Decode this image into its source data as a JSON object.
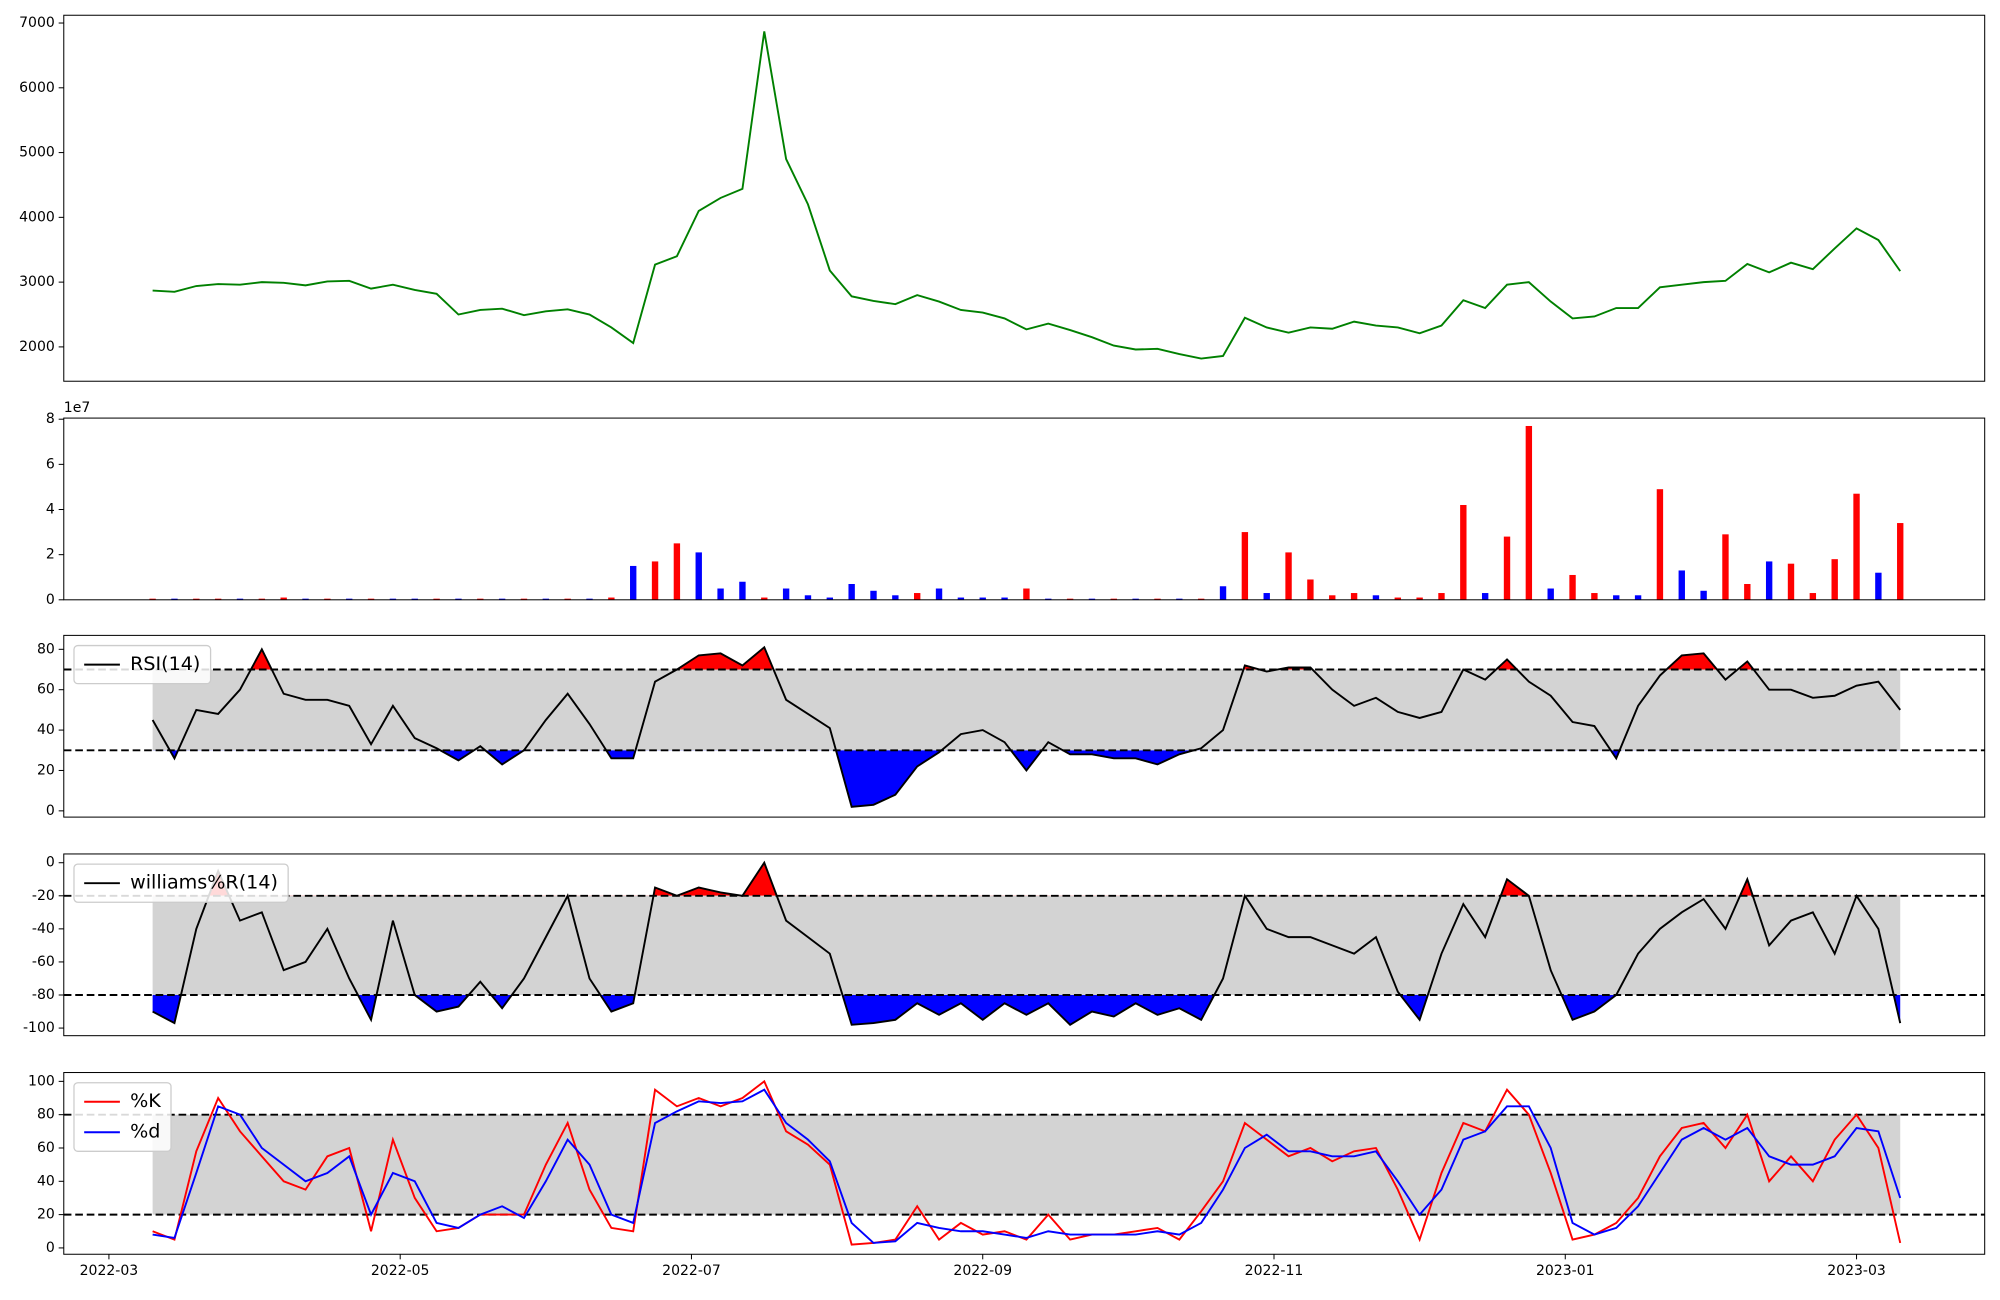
{
  "chart_data": [
    {
      "type": "line",
      "x": [
        0.3,
        0.45,
        0.6,
        0.75,
        0.9,
        1.05,
        1.2,
        1.35,
        1.5,
        1.65,
        1.8,
        1.95,
        2.1,
        2.25,
        2.4,
        2.55,
        2.7,
        2.85,
        3,
        3.15,
        3.3,
        3.45,
        3.6,
        3.75,
        3.9,
        4.05,
        4.2,
        4.35,
        4.5,
        4.65,
        4.8,
        4.95,
        5.1,
        5.25,
        5.4,
        5.55,
        5.7,
        5.85,
        6,
        6.15,
        6.3,
        6.45,
        6.6,
        6.75,
        6.9,
        7.05,
        7.2,
        7.35,
        7.5,
        7.65,
        7.8,
        7.95,
        8.1,
        8.25,
        8.4,
        8.55,
        8.7,
        8.85,
        9,
        9.15,
        9.3,
        9.45,
        9.6,
        9.75,
        9.9,
        10.05,
        10.2,
        10.35,
        10.5,
        10.65,
        10.8,
        10.95,
        11.1,
        11.25,
        11.4,
        11.55,
        11.7,
        11.85,
        12,
        12.15,
        12.3
      ],
      "values": [
        2870,
        2850,
        2940,
        2970,
        2960,
        3000,
        2990,
        2950,
        3010,
        3020,
        2900,
        2960,
        2880,
        2820,
        2500,
        2570,
        2590,
        2490,
        2550,
        2580,
        2500,
        2300,
        2060,
        3270,
        3400,
        4100,
        4300,
        4440,
        6870,
        4900,
        4200,
        3180,
        2780,
        2710,
        2660,
        2800,
        2700,
        2570,
        2530,
        2440,
        2270,
        2360,
        2260,
        2150,
        2020,
        1960,
        1970,
        1890,
        1820,
        1860,
        2450,
        2300,
        2220,
        2300,
        2280,
        2390,
        2330,
        2300,
        2210,
        2330,
        2720,
        2600,
        2960,
        3000,
        2700,
        2440,
        2470,
        2600,
        2600,
        2920,
        2960,
        3000,
        3020,
        3280,
        3150,
        3300,
        3200,
        3520,
        3830,
        3650,
        3170
      ],
      "color": "#008000",
      "xlim": [
        -0.31,
        12.88
      ],
      "ylim": [
        1470,
        7120
      ],
      "yticks": [
        2000,
        3000,
        4000,
        5000,
        6000,
        7000
      ]
    },
    {
      "type": "bar",
      "x": [
        0.3,
        0.45,
        0.6,
        0.75,
        0.9,
        1.05,
        1.2,
        1.35,
        1.5,
        1.65,
        1.8,
        1.95,
        2.1,
        2.25,
        2.4,
        2.55,
        2.7,
        2.85,
        3,
        3.15,
        3.3,
        3.45,
        3.6,
        3.75,
        3.9,
        4.05,
        4.2,
        4.35,
        4.5,
        4.65,
        4.8,
        4.95,
        5.1,
        5.25,
        5.4,
        5.55,
        5.7,
        5.85,
        6,
        6.15,
        6.3,
        6.45,
        6.6,
        6.75,
        6.9,
        7.05,
        7.2,
        7.35,
        7.5,
        7.65,
        7.8,
        7.95,
        8.1,
        8.25,
        8.4,
        8.55,
        8.7,
        8.85,
        9,
        9.15,
        9.3,
        9.45,
        9.6,
        9.75,
        9.9,
        10.05,
        10.2,
        10.35,
        10.5,
        10.65,
        10.8,
        10.95,
        11.1,
        11.25,
        11.4,
        11.55,
        11.7,
        11.85,
        12,
        12.15,
        12.3
      ],
      "values": [
        0.05,
        0.05,
        0.05,
        0.05,
        0.05,
        0.05,
        0.1,
        0.05,
        0.05,
        0.05,
        0.05,
        0.05,
        0.05,
        0.05,
        0.05,
        0.05,
        0.05,
        0.05,
        0.05,
        0.05,
        0.05,
        0.1,
        1.5,
        1.7,
        2.5,
        2.1,
        0.5,
        0.8,
        0.1,
        0.5,
        0.2,
        0.1,
        0.7,
        0.4,
        0.2,
        0.3,
        0.5,
        0.1,
        0.1,
        0.1,
        0.5,
        0.05,
        0.05,
        0.05,
        0.05,
        0.05,
        0.05,
        0.05,
        0.05,
        0.6,
        3,
        0.3,
        2.1,
        0.9,
        0.2,
        0.3,
        0.2,
        0.1,
        0.1,
        0.3,
        4.2,
        0.3,
        2.8,
        7.7,
        0.5,
        1.1,
        0.3,
        0.2,
        0.2,
        4.9,
        1.3,
        0.4,
        2.9,
        0.7,
        1.7,
        1.6,
        0.3,
        1.8,
        4.7,
        1.2,
        3.4
      ],
      "colors": [
        "red",
        "blue",
        "red",
        "red",
        "blue",
        "red",
        "red",
        "blue",
        "red",
        "blue",
        "red",
        "blue",
        "blue",
        "red",
        "blue",
        "red",
        "blue",
        "red",
        "blue",
        "red",
        "blue",
        "red",
        "blue",
        "red",
        "red",
        "blue",
        "blue",
        "blue",
        "red",
        "blue",
        "blue",
        "blue",
        "blue",
        "blue",
        "blue",
        "red",
        "blue",
        "blue",
        "blue",
        "blue",
        "red",
        "blue",
        "red",
        "blue",
        "red",
        "blue",
        "red",
        "blue",
        "red",
        "blue",
        "red",
        "blue",
        "red",
        "red",
        "red",
        "red",
        "blue",
        "red",
        "red",
        "red",
        "red",
        "blue",
        "red",
        "red",
        "blue",
        "red",
        "red",
        "blue",
        "blue",
        "red",
        "blue",
        "blue",
        "red",
        "red",
        "blue",
        "red",
        "red",
        "red",
        "red",
        "blue",
        "red"
      ],
      "offset_label": "1e7",
      "xlim": [
        -0.31,
        12.88
      ],
      "ylim": [
        0,
        8.05
      ],
      "yticks": [
        0,
        2,
        4,
        6,
        8
      ]
    },
    {
      "type": "oscillator",
      "x": [
        0.3,
        0.45,
        0.6,
        0.75,
        0.9,
        1.05,
        1.2,
        1.35,
        1.5,
        1.65,
        1.8,
        1.95,
        2.1,
        2.25,
        2.4,
        2.55,
        2.7,
        2.85,
        3,
        3.15,
        3.3,
        3.45,
        3.6,
        3.75,
        3.9,
        4.05,
        4.2,
        4.35,
        4.5,
        4.65,
        4.8,
        4.95,
        5.1,
        5.25,
        5.4,
        5.55,
        5.7,
        5.85,
        6,
        6.15,
        6.3,
        6.45,
        6.6,
        6.75,
        6.9,
        7.05,
        7.2,
        7.35,
        7.5,
        7.65,
        7.8,
        7.95,
        8.1,
        8.25,
        8.4,
        8.55,
        8.7,
        8.85,
        9,
        9.15,
        9.3,
        9.45,
        9.6,
        9.75,
        9.9,
        10.05,
        10.2,
        10.35,
        10.5,
        10.65,
        10.8,
        10.95,
        11.1,
        11.25,
        11.4,
        11.55,
        11.7,
        11.85,
        12,
        12.15,
        12.3
      ],
      "series": [
        {
          "name": "RSI(14)",
          "color": "black",
          "values": [
            45,
            26,
            50,
            48,
            60,
            80,
            58,
            55,
            55,
            52,
            33,
            52,
            36,
            31,
            25,
            32,
            23,
            30,
            45,
            58,
            43,
            26,
            26,
            64,
            70,
            77,
            78,
            72,
            81,
            55,
            48,
            41,
            2,
            3,
            8,
            22,
            29,
            38,
            40,
            34,
            20,
            34,
            28,
            28,
            26,
            26,
            23,
            28,
            31,
            40,
            72,
            69,
            71,
            71,
            60,
            52,
            56,
            49,
            46,
            49,
            70,
            65,
            75,
            64,
            57,
            44,
            42,
            26,
            52,
            67,
            77,
            78,
            65,
            74,
            60,
            60,
            56,
            57,
            62,
            64,
            50
          ]
        }
      ],
      "hlines": [
        70,
        30
      ],
      "fill_above": "red",
      "fill_below": "blue",
      "band_color": "lightgray",
      "legend": "upper left",
      "xlim": [
        -0.31,
        12.88
      ],
      "ylim": [
        -3.1,
        86.9
      ],
      "yticks": [
        0,
        20,
        40,
        60,
        80
      ]
    },
    {
      "type": "oscillator",
      "x": [
        0.3,
        0.45,
        0.6,
        0.75,
        0.9,
        1.05,
        1.2,
        1.35,
        1.5,
        1.65,
        1.8,
        1.95,
        2.1,
        2.25,
        2.4,
        2.55,
        2.7,
        2.85,
        3,
        3.15,
        3.3,
        3.45,
        3.6,
        3.75,
        3.9,
        4.05,
        4.2,
        4.35,
        4.5,
        4.65,
        4.8,
        4.95,
        5.1,
        5.25,
        5.4,
        5.55,
        5.7,
        5.85,
        6,
        6.15,
        6.3,
        6.45,
        6.6,
        6.75,
        6.9,
        7.05,
        7.2,
        7.35,
        7.5,
        7.65,
        7.8,
        7.95,
        8.1,
        8.25,
        8.4,
        8.55,
        8.7,
        8.85,
        9,
        9.15,
        9.3,
        9.45,
        9.6,
        9.75,
        9.9,
        10.05,
        10.2,
        10.35,
        10.5,
        10.65,
        10.8,
        10.95,
        11.1,
        11.25,
        11.4,
        11.55,
        11.7,
        11.85,
        12,
        12.15,
        12.3
      ],
      "series": [
        {
          "name": "williams%R(14)",
          "color": "black",
          "values": [
            -90,
            -97,
            -40,
            -5,
            -35,
            -30,
            -65,
            -60,
            -40,
            -70,
            -95,
            -35,
            -80,
            -90,
            -87,
            -72,
            -88,
            -70,
            -45,
            -20,
            -70,
            -90,
            -85,
            -15,
            -20,
            -15,
            -18,
            -20,
            0,
            -35,
            -45,
            -55,
            -98,
            -97,
            -95,
            -85,
            -92,
            -85,
            -95,
            -85,
            -92,
            -85,
            -98,
            -90,
            -93,
            -85,
            -92,
            -88,
            -95,
            -70,
            -20,
            -40,
            -45,
            -45,
            -50,
            -55,
            -45,
            -78,
            -95,
            -55,
            -25,
            -45,
            -10,
            -20,
            -65,
            -95,
            -90,
            -80,
            -55,
            -40,
            -30,
            -22,
            -40,
            -10,
            -50,
            -35,
            -30,
            -55,
            -20,
            -40,
            -97
          ]
        }
      ],
      "hlines": [
        -20,
        -80
      ],
      "fill_above": "red",
      "fill_below": "blue",
      "band_color": "lightgray",
      "legend": "upper left",
      "xlim": [
        -0.31,
        12.88
      ],
      "ylim": [
        -104.6,
        5.3
      ],
      "yticks": [
        -100,
        -80,
        -60,
        -40,
        -20,
        0
      ]
    },
    {
      "type": "oscillator",
      "x": [
        0.3,
        0.45,
        0.6,
        0.75,
        0.9,
        1.05,
        1.2,
        1.35,
        1.5,
        1.65,
        1.8,
        1.95,
        2.1,
        2.25,
        2.4,
        2.55,
        2.7,
        2.85,
        3,
        3.15,
        3.3,
        3.45,
        3.6,
        3.75,
        3.9,
        4.05,
        4.2,
        4.35,
        4.5,
        4.65,
        4.8,
        4.95,
        5.1,
        5.25,
        5.4,
        5.55,
        5.7,
        5.85,
        6,
        6.15,
        6.3,
        6.45,
        6.6,
        6.75,
        6.9,
        7.05,
        7.2,
        7.35,
        7.5,
        7.65,
        7.8,
        7.95,
        8.1,
        8.25,
        8.4,
        8.55,
        8.7,
        8.85,
        9,
        9.15,
        9.3,
        9.45,
        9.6,
        9.75,
        9.9,
        10.05,
        10.2,
        10.35,
        10.5,
        10.65,
        10.8,
        10.95,
        11.1,
        11.25,
        11.4,
        11.55,
        11.7,
        11.85,
        12,
        12.15,
        12.3
      ],
      "series": [
        {
          "name": "%K",
          "color": "red",
          "values": [
            10,
            5,
            58,
            90,
            70,
            55,
            40,
            35,
            55,
            60,
            10,
            65,
            30,
            10,
            12,
            20,
            20,
            20,
            50,
            75,
            35,
            12,
            10,
            95,
            85,
            90,
            85,
            90,
            100,
            70,
            62,
            50,
            2,
            3,
            5,
            25,
            5,
            15,
            8,
            10,
            5,
            20,
            5,
            8,
            8,
            10,
            12,
            5,
            22,
            40,
            75,
            65,
            55,
            60,
            52,
            58,
            60,
            35,
            5,
            45,
            75,
            70,
            95,
            80,
            45,
            5,
            8,
            15,
            30,
            55,
            72,
            75,
            60,
            80,
            40,
            55,
            40,
            65,
            80,
            60,
            3
          ]
        },
        {
          "name": "%d",
          "color": "blue",
          "values": [
            8,
            6,
            45,
            85,
            80,
            60,
            50,
            40,
            45,
            55,
            20,
            45,
            40,
            15,
            12,
            20,
            25,
            18,
            40,
            65,
            50,
            20,
            15,
            75,
            82,
            88,
            87,
            88,
            95,
            75,
            65,
            52,
            15,
            3,
            4,
            15,
            12,
            10,
            10,
            8,
            6,
            10,
            8,
            8,
            8,
            8,
            10,
            8,
            15,
            35,
            60,
            68,
            58,
            58,
            55,
            55,
            58,
            40,
            20,
            35,
            65,
            70,
            85,
            85,
            60,
            15,
            8,
            12,
            25,
            45,
            65,
            72,
            65,
            72,
            55,
            50,
            50,
            55,
            72,
            70,
            30
          ]
        }
      ],
      "hlines": [
        80,
        20
      ],
      "band_color": "lightgray",
      "legend": "upper left",
      "xlim": [
        -0.31,
        12.88
      ],
      "ylim": [
        -3.8,
        105.3
      ],
      "yticks": [
        0,
        20,
        40,
        60,
        80,
        100
      ],
      "xticks": [
        {
          "value": 0,
          "label": "2022-03"
        },
        {
          "value": 2,
          "label": "2022-05"
        },
        {
          "value": 4,
          "label": "2022-07"
        },
        {
          "value": 6,
          "label": "2022-09"
        },
        {
          "value": 8,
          "label": "2022-11"
        },
        {
          "value": 10,
          "label": "2023-01"
        },
        {
          "value": 12,
          "label": "2023-03"
        }
      ]
    }
  ]
}
